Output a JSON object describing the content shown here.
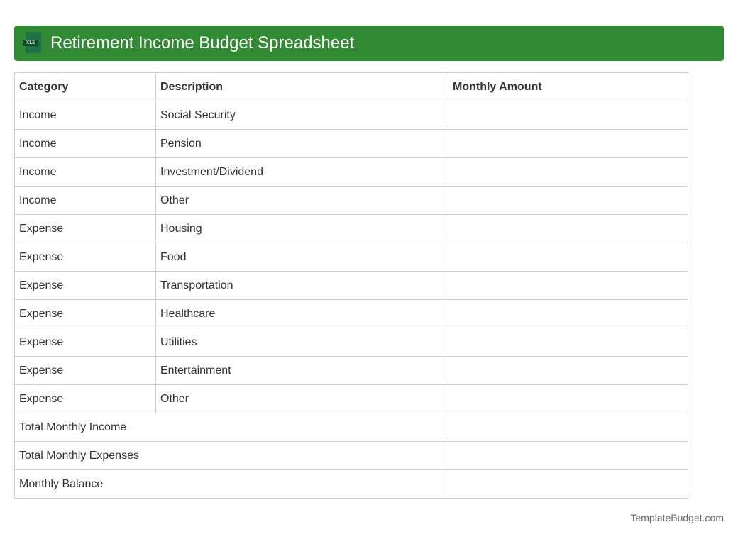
{
  "header": {
    "title": "Retirement Income Budget Spreadsheet",
    "icon": "xls-file-icon",
    "icon_label": "XLS"
  },
  "table": {
    "headers": [
      "Category",
      "Description",
      "Monthly Amount"
    ],
    "rows": [
      [
        "Income",
        "Social Security",
        ""
      ],
      [
        "Income",
        "Pension",
        ""
      ],
      [
        "Income",
        "Investment/Dividend",
        ""
      ],
      [
        "Income",
        "Other",
        ""
      ],
      [
        "Expense",
        "Housing",
        ""
      ],
      [
        "Expense",
        "Food",
        ""
      ],
      [
        "Expense",
        "Transportation",
        ""
      ],
      [
        "Expense",
        "Healthcare",
        ""
      ],
      [
        "Expense",
        "Utilities",
        ""
      ],
      [
        "Expense",
        "Entertainment",
        ""
      ],
      [
        "Expense",
        "Other",
        ""
      ]
    ],
    "totals": [
      [
        "Total Monthly Income",
        ""
      ],
      [
        "Total Monthly Expenses",
        ""
      ],
      [
        "Monthly Balance",
        ""
      ]
    ]
  },
  "footer": {
    "brand": "TemplateBudget.com"
  },
  "colors": {
    "header_bg": "#338a34",
    "border": "#cccccc"
  }
}
